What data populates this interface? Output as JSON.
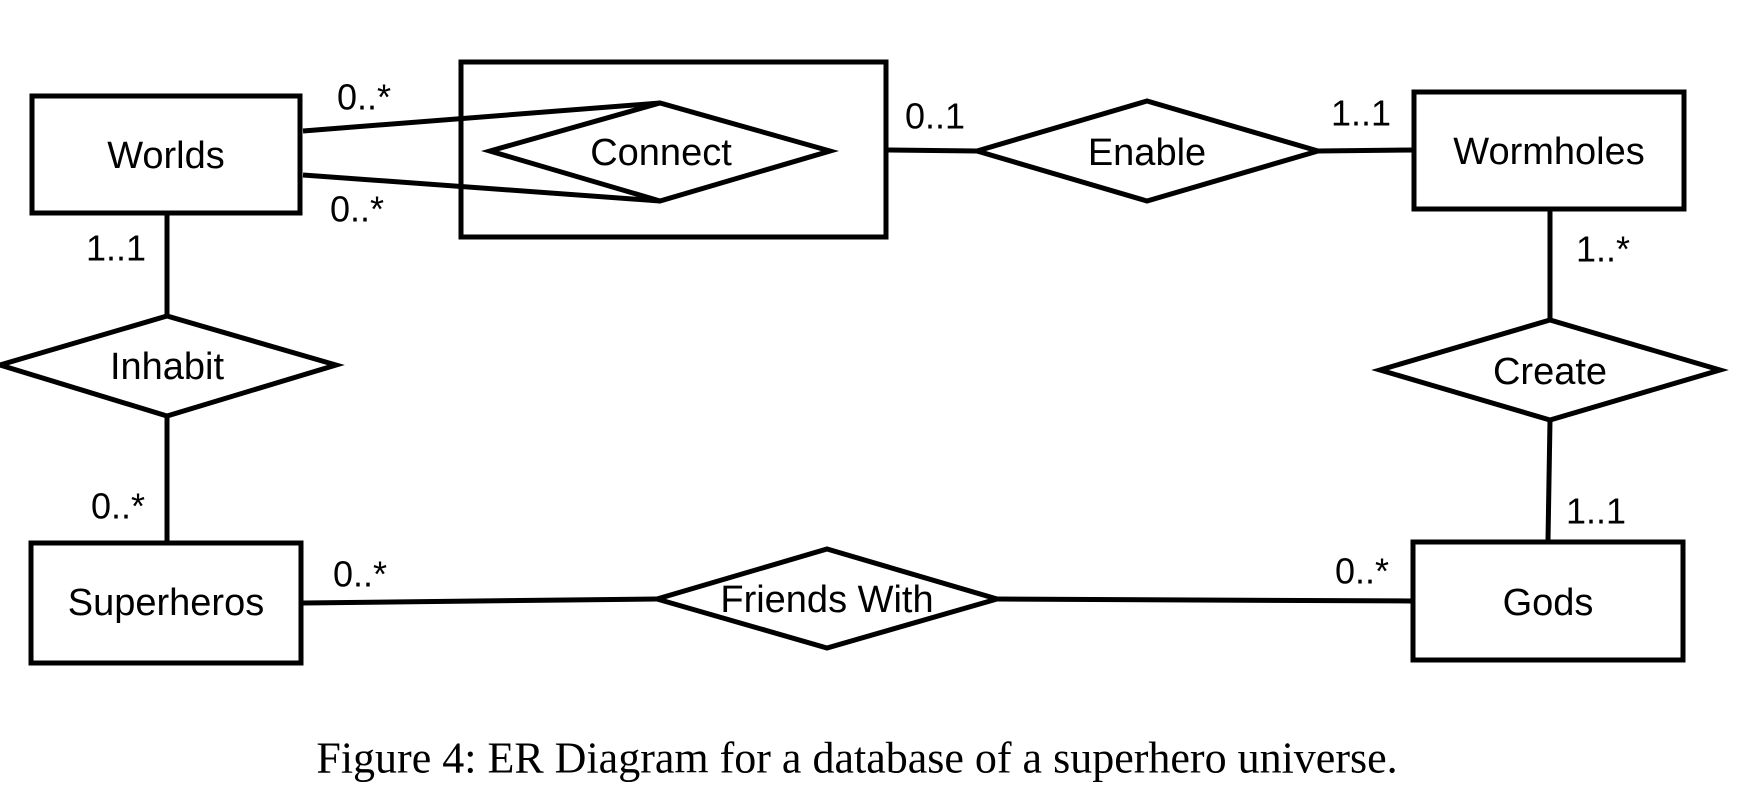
{
  "diagram": {
    "entities": {
      "worlds": "Worlds",
      "wormholes": "Wormholes",
      "superheros": "Superheros",
      "gods": "Gods"
    },
    "relationships": {
      "connect": "Connect",
      "enable": "Enable",
      "inhabit": "Inhabit",
      "create": "Create",
      "friends_with": "Friends With"
    },
    "cardinalities": {
      "worlds_connect_top": "0..*",
      "worlds_connect_bottom": "0..*",
      "connect_enable": "0..1",
      "enable_wormholes": "1..1",
      "worlds_inhabit": "1..1",
      "inhabit_superheros": "0..*",
      "wormholes_create": "1..*",
      "create_gods": "1..1",
      "superheros_friends": "0..*",
      "friends_gods": "0..*"
    }
  },
  "caption": "Figure 4: ER Diagram for a database of a superhero universe."
}
